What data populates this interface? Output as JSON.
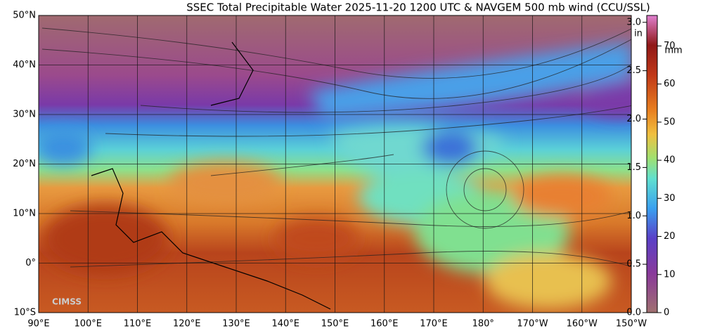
{
  "title": "SSEC Total Precipitable Water  2025-11-20 1200 UTC & NAVGEM 500 mb wind (CCU/SSL)",
  "logo_text": "CIMSS",
  "map": {
    "xlim": [
      90,
      210
    ],
    "ylim": [
      -10,
      50
    ],
    "lat_ticks": [
      {
        "value": 50,
        "label": "50°N"
      },
      {
        "value": 40,
        "label": "40°N"
      },
      {
        "value": 30,
        "label": "30°N"
      },
      {
        "value": 20,
        "label": "20°N"
      },
      {
        "value": 10,
        "label": "10°N"
      },
      {
        "value": 0,
        "label": "0°"
      },
      {
        "value": -10,
        "label": "10°S"
      }
    ],
    "lon_ticks": [
      {
        "value": 90,
        "label": "90°E"
      },
      {
        "value": 100,
        "label": "100°E"
      },
      {
        "value": 110,
        "label": "110°E"
      },
      {
        "value": 120,
        "label": "120°E"
      },
      {
        "value": 130,
        "label": "130°E"
      },
      {
        "value": 140,
        "label": "140°E"
      },
      {
        "value": 150,
        "label": "150°E"
      },
      {
        "value": 160,
        "label": "160°E"
      },
      {
        "value": 170,
        "label": "170°E"
      },
      {
        "value": 180,
        "label": "180°"
      },
      {
        "value": 190,
        "label": "170°W"
      },
      {
        "value": 200,
        "label": "160°W"
      },
      {
        "value": 210,
        "label": "150°W"
      }
    ]
  },
  "colorbar": {
    "unit_in": "in",
    "unit_mm": "mm",
    "range_mm": [
      0,
      78
    ],
    "in_ticks": [
      {
        "value": 0,
        "label": "0.0"
      },
      {
        "value": 12.7,
        "label": "0.5"
      },
      {
        "value": 25.4,
        "label": "1.0"
      },
      {
        "value": 38.1,
        "label": "1.5"
      },
      {
        "value": 50.8,
        "label": "2.0"
      },
      {
        "value": 63.5,
        "label": "2.5"
      },
      {
        "value": 76.2,
        "label": "3.0"
      }
    ],
    "mm_ticks": [
      0,
      10,
      20,
      30,
      40,
      50,
      60,
      70
    ]
  }
}
